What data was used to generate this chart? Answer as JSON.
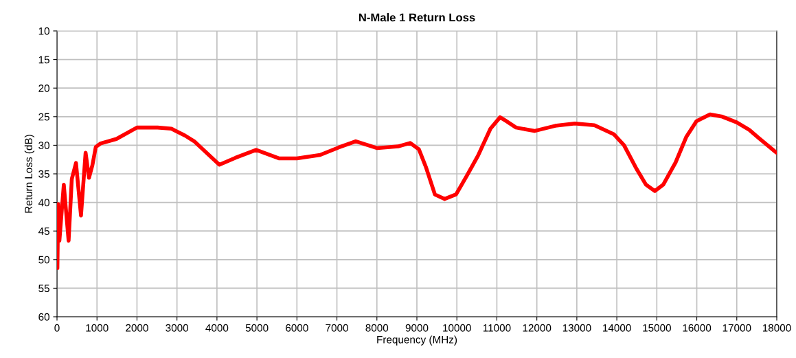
{
  "chart_data": {
    "type": "line",
    "title": "N-Male 1 Return Loss",
    "xlabel": "Frequency (MHz)",
    "ylabel": "Return Loss (dB)",
    "series": [
      {
        "color": "#ff0000",
        "x": [
          10,
          30,
          60,
          170,
          290,
          370,
          475,
          600,
          715,
          800,
          885,
          970,
          1085,
          1485,
          2000,
          2515,
          2860,
          3200,
          3430,
          4060,
          4460,
          4980,
          5560,
          6000,
          6580,
          7040,
          7470,
          8010,
          8530,
          8830,
          9050,
          9230,
          9450,
          9690,
          9980,
          10260,
          10530,
          10840,
          11080,
          11240,
          11480,
          11940,
          12460,
          12950,
          13440,
          13930,
          14180,
          14490,
          14730,
          14950,
          15160,
          15470,
          15740,
          15990,
          16330,
          16640,
          17000,
          17310,
          17560,
          17990
        ],
        "values": [
          51.5,
          40.3,
          46.7,
          36.9,
          46.7,
          35.9,
          33.1,
          42.3,
          31.3,
          35.7,
          33.5,
          30.3,
          29.7,
          28.9,
          26.9,
          26.9,
          27.1,
          28.3,
          29.3,
          33.4,
          32.2,
          30.8,
          32.3,
          32.3,
          31.7,
          30.4,
          29.3,
          30.5,
          30.2,
          29.6,
          30.7,
          33.9,
          38.6,
          39.4,
          38.6,
          35.2,
          31.8,
          27.1,
          25.1,
          25.8,
          26.9,
          27.5,
          26.6,
          26.2,
          26.5,
          28.1,
          30.0,
          34.1,
          36.9,
          38.0,
          36.9,
          33.0,
          28.5,
          25.8,
          24.6,
          25.0,
          26.0,
          27.3,
          28.8,
          31.3
        ]
      }
    ],
    "xlim": [
      0,
      18000
    ],
    "xticks": [
      0,
      1000,
      2000,
      3000,
      4000,
      5000,
      6000,
      7000,
      8000,
      9000,
      10000,
      11000,
      12000,
      13000,
      14000,
      15000,
      16000,
      17000,
      18000
    ],
    "ylim": [
      60,
      10
    ],
    "yticks": [
      10,
      15,
      20,
      25,
      30,
      35,
      40,
      45,
      50,
      55,
      60
    ],
    "grid": true,
    "marker": "none",
    "line_style": "solid"
  }
}
